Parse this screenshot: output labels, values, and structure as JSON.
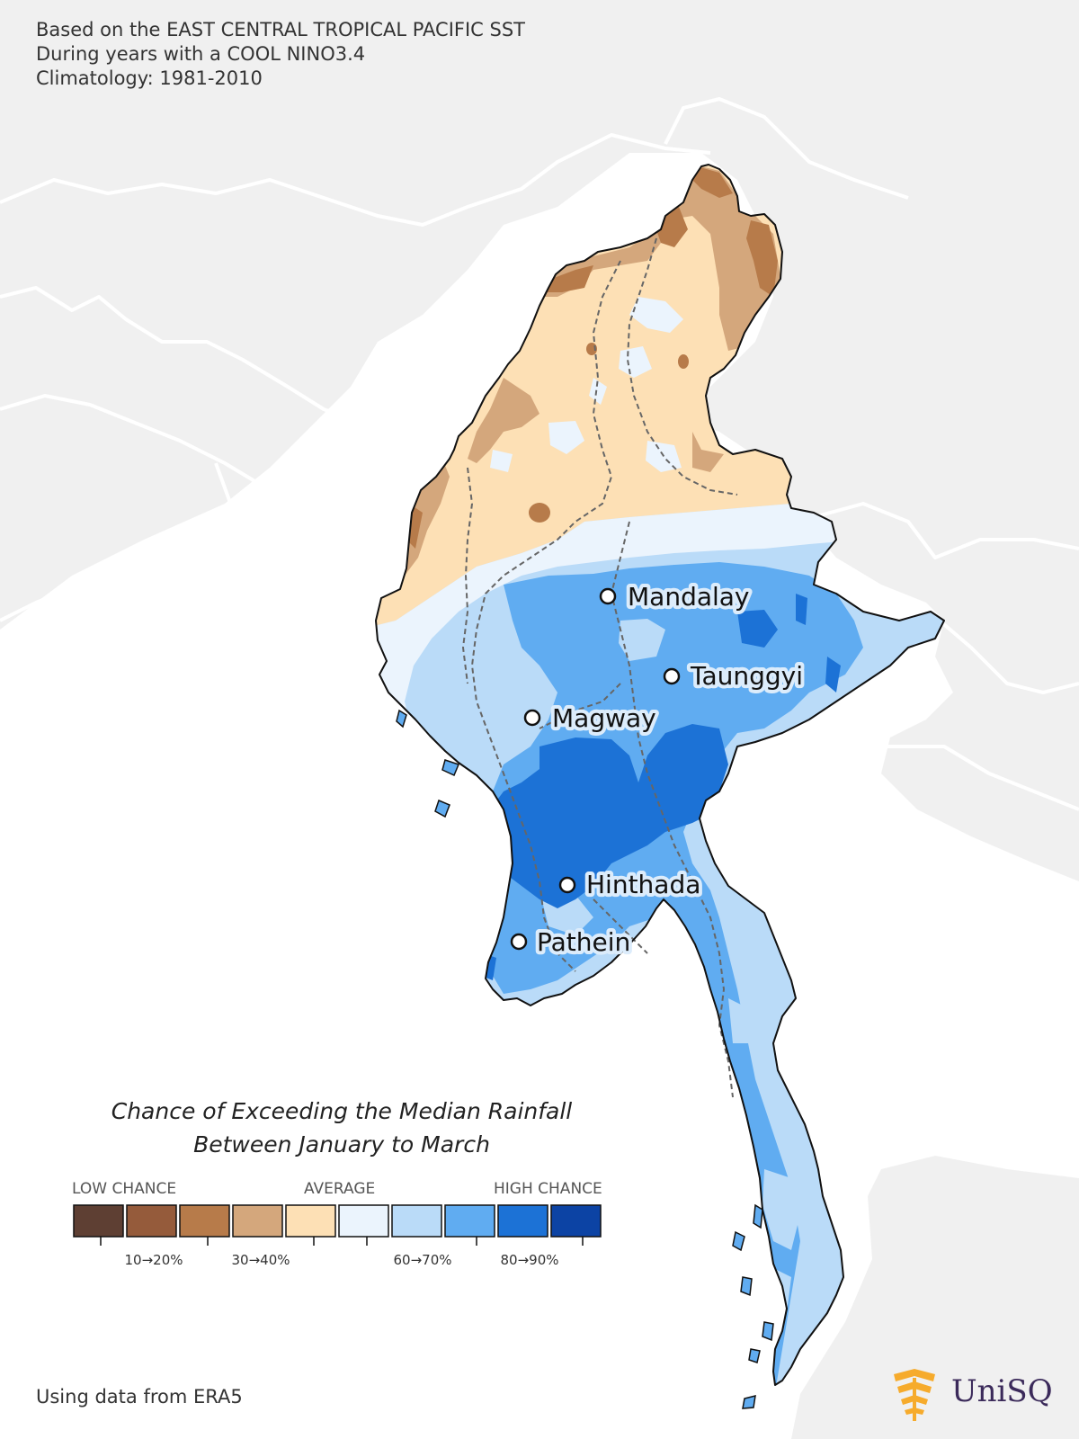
{
  "header": {
    "line1": "Based on the EAST CENTRAL TROPICAL PACIFIC SST",
    "line2": "During years with a COOL NINO3.4",
    "line3": "Climatology: 1981-2010"
  },
  "cities": [
    {
      "name": "Mandalay"
    },
    {
      "name": "Taunggyi"
    },
    {
      "name": "Magway"
    },
    {
      "name": "Hinthada"
    },
    {
      "name": "Pathein"
    }
  ],
  "legend": {
    "title_line1": "Chance of Exceeding the Median Rainfall",
    "title_line2": "Between January to March",
    "caption_low": "LOW CHANCE",
    "caption_avg": "AVERAGE",
    "caption_high": "HIGH CHANCE",
    "colors": [
      "#5e3f33",
      "#955b3b",
      "#b77b4a",
      "#d4a77c",
      "#fde0b5",
      "#ebf4fd",
      "#badbf8",
      "#60acf1",
      "#1c72d6",
      "#0c43a4"
    ],
    "tick_labels": [
      "10→20%",
      "30→40%",
      "60→70%",
      "80→90%"
    ]
  },
  "footer": {
    "source": "Using data from ERA5"
  },
  "logo": {
    "text": "UniSQ"
  }
}
